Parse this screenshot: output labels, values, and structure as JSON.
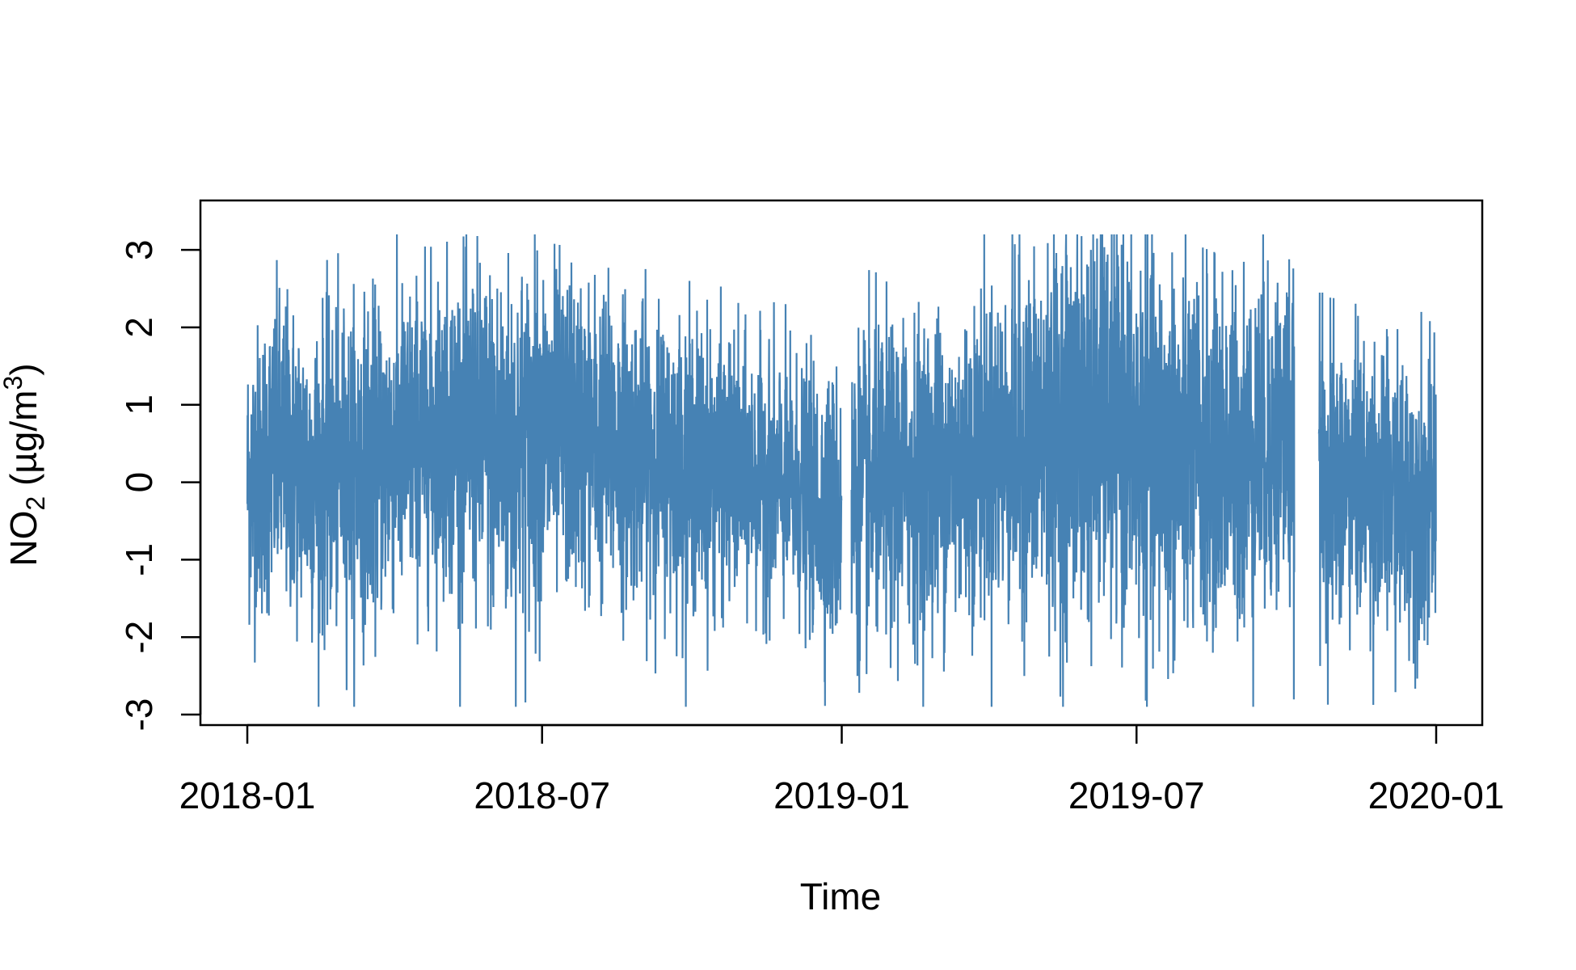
{
  "chart_data": {
    "type": "line",
    "xlabel": "Time",
    "ylabel_main": "NO",
    "ylabel_sub": "2",
    "ylabel_units_pre": " (µg/m",
    "ylabel_units_sup": "3",
    "ylabel_units_post": ")",
    "x_range": [
      "2018-01-01",
      "2019-12-31"
    ],
    "ylim": [
      -3,
      3.2
    ],
    "x_ticks": [
      {
        "date": "2018-01-01",
        "label": "2018-01"
      },
      {
        "date": "2018-07-01",
        "label": "2018-07"
      },
      {
        "date": "2019-01-01",
        "label": "2019-01"
      },
      {
        "date": "2019-07-01",
        "label": "2019-07"
      },
      {
        "date": "2020-01-01",
        "label": "2020-01"
      }
    ],
    "y_ticks": [
      -3,
      -2,
      -1,
      0,
      1,
      2,
      3
    ],
    "y_tick_labels": [
      "-3",
      "-2",
      "-1",
      "0",
      "1",
      "2",
      "3"
    ],
    "grid": false,
    "legend": "none",
    "line_color": "#4682B4",
    "gaps": [
      [
        "2019-01-01",
        "2019-01-07"
      ],
      [
        "2019-10-06",
        "2019-10-21"
      ]
    ],
    "series": [
      {
        "points": [
          [
            "2018-01-01",
            0.0
          ],
          [
            "2018-01-20",
            0.4
          ],
          [
            "2018-02-10",
            0.1
          ],
          [
            "2018-03-01",
            0.2
          ],
          [
            "2018-03-20",
            0.3
          ],
          [
            "2018-04-10",
            0.5
          ],
          [
            "2018-05-01",
            0.7
          ],
          [
            "2018-05-20",
            0.6
          ],
          [
            "2018-06-10",
            0.4
          ],
          [
            "2018-07-01",
            0.6
          ],
          [
            "2018-07-20",
            0.6
          ],
          [
            "2018-08-10",
            0.5
          ],
          [
            "2018-09-01",
            0.4
          ],
          [
            "2018-09-20",
            0.3
          ],
          [
            "2018-10-10",
            0.2
          ],
          [
            "2018-11-01",
            0.1
          ],
          [
            "2018-11-20",
            0.0
          ],
          [
            "2018-12-10",
            -0.2
          ],
          [
            "2018-12-31",
            -0.4
          ],
          [
            "2019-01-08",
            -0.2
          ],
          [
            "2019-02-01",
            0.0
          ],
          [
            "2019-02-20",
            0.1
          ],
          [
            "2019-03-10",
            0.2
          ],
          [
            "2019-04-01",
            0.4
          ],
          [
            "2019-04-20",
            0.5
          ],
          [
            "2019-05-10",
            0.6
          ],
          [
            "2019-06-01",
            0.8
          ],
          [
            "2019-06-20",
            0.7
          ],
          [
            "2019-07-10",
            0.4
          ],
          [
            "2019-08-01",
            0.3
          ],
          [
            "2019-08-20",
            0.3
          ],
          [
            "2019-09-10",
            0.4
          ],
          [
            "2019-10-01",
            0.6
          ],
          [
            "2019-10-22",
            0.0
          ],
          [
            "2019-11-10",
            0.0
          ],
          [
            "2019-12-01",
            -0.1
          ],
          [
            "2019-12-31",
            -0.3
          ]
        ],
        "noise_sd": [
          [
            0.9,
            1.0,
            1.0,
            1.0,
            1.0,
            1.0,
            1.0,
            1.1,
            1.2,
            1.1,
            1.0,
            1.0,
            0.9,
            0.9,
            0.9,
            0.8,
            0.8,
            0.8,
            0.9,
            1.0,
            1.0,
            1.0,
            1.0,
            1.0,
            1.1,
            1.2,
            1.3,
            1.2,
            1.3,
            1.2,
            1.1,
            1.1,
            1.1,
            1.0,
            0.9,
            0.9,
            0.9
          ]
        ]
      }
    ]
  }
}
